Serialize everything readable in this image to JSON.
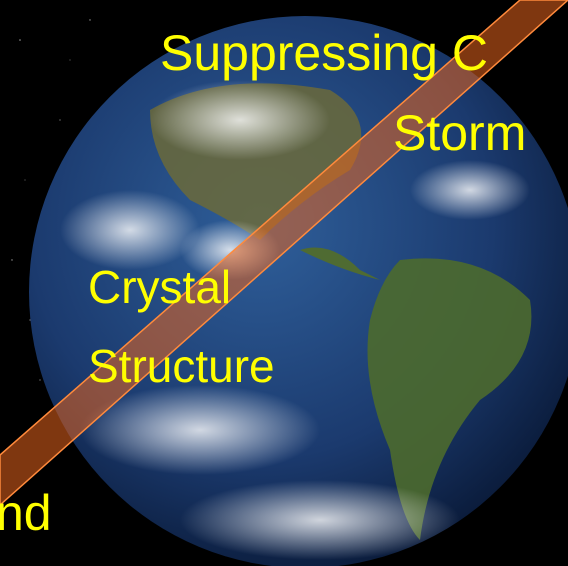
{
  "labels": {
    "top": "Suppressing C",
    "storm": "Storm",
    "crystal": "Crystal",
    "structure": "Structure",
    "bottom": "nd"
  }
}
